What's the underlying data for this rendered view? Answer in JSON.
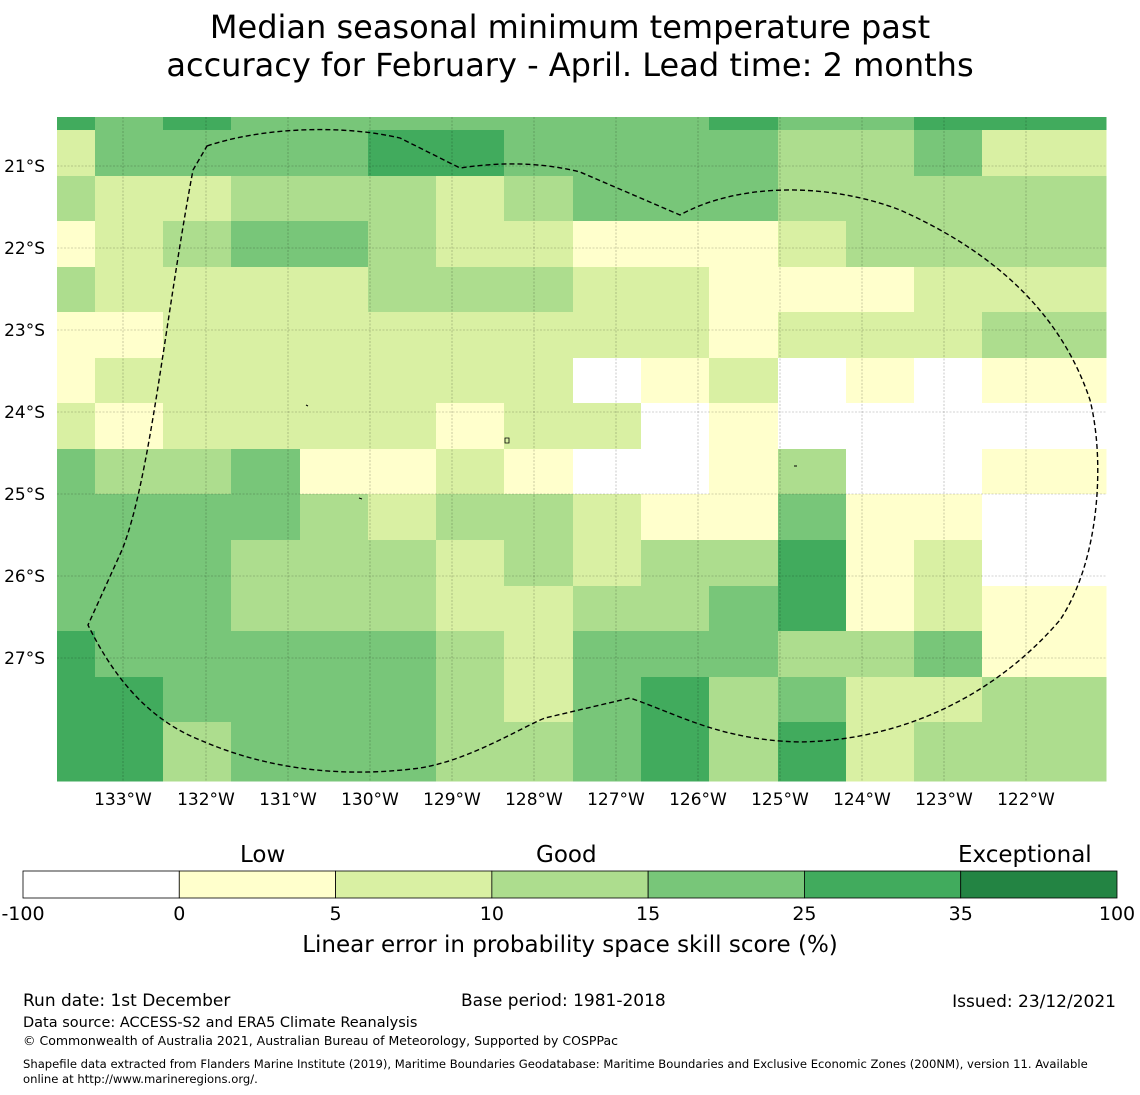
{
  "title": {
    "line1": "Median seasonal minimum temperature past",
    "line2": "accuracy for February - April. Lead time: 2 months"
  },
  "map": {
    "lon_ticks": [
      "133°W",
      "132°W",
      "131°W",
      "130°W",
      "129°W",
      "128°W",
      "127°W",
      "126°W",
      "125°W",
      "124°W",
      "123°W",
      "122°W"
    ],
    "lat_ticks": [
      "21°S",
      "22°S",
      "23°S",
      "24°S",
      "25°S",
      "26°S",
      "27°S"
    ],
    "columns": 15,
    "rows": 15,
    "class_colors": [
      "#ffffff",
      "#ffffcc",
      "#d9f0a3",
      "#addd8e",
      "#78c679",
      "#41ab5d",
      "#238443"
    ],
    "grid_classes": [
      "545444444454455",
      "244445544443342",
      "322333234443333",
      "123443221112333",
      "322223332211122",
      "112222222212223",
      "122222220120101",
      "212222122010000",
      "433411210013001",
      "444432332114110",
      "444333232335120",
      "444333223345121",
      "544444324443341",
      "554444324534223",
      "553444334535233"
    ],
    "boundary_color": "#000000"
  },
  "legend": {
    "categories": [
      "Low",
      "Good",
      "Exceptional"
    ],
    "bins": [
      {
        "label": "-100",
        "color": "#ffffff"
      },
      {
        "label": "0",
        "color": "#ffffcc"
      },
      {
        "label": "5",
        "color": "#d9f0a3"
      },
      {
        "label": "10",
        "color": "#addd8e"
      },
      {
        "label": "15",
        "color": "#78c679"
      },
      {
        "label": "25",
        "color": "#41ab5d"
      },
      {
        "label": "35",
        "color": "#238443"
      }
    ],
    "end_label": "100",
    "axis_label": "Linear error in probability space skill score (%)"
  },
  "footer": {
    "run_date": "Run date: 1st December",
    "base_period": "Base period: 1981-2018",
    "issued": "Issued: 23/12/2021",
    "data_source": "Data source: ACCESS-S2 and ERA5 Climate Reanalysis",
    "copyright": "© Commonwealth of Australia 2021, Australian Bureau of Meteorology, Supported by COSPPac",
    "shapefile_line1": "Shapefile data extracted from Flanders Marine Institute (2019), Maritime Boundaries Geodatabase: Maritime Boundaries and Exclusive Economic Zones (200NM), version 11. Available",
    "shapefile_line2": "online at http://www.marineregions.org/."
  }
}
